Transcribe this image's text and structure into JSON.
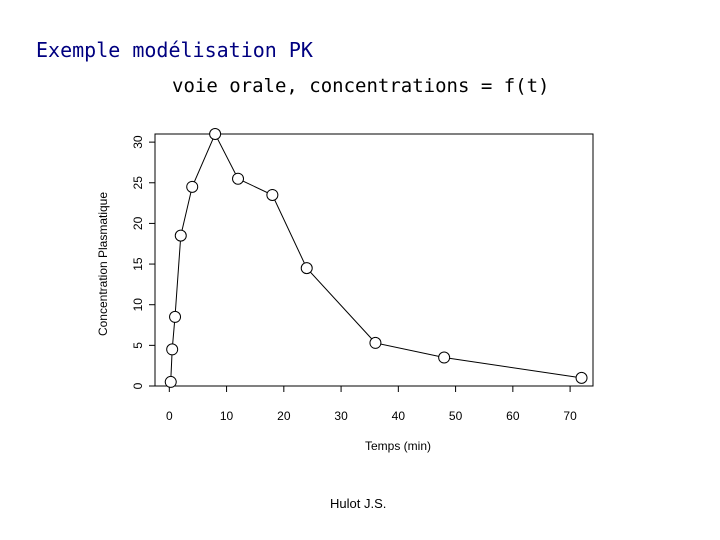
{
  "header": {
    "title": "Exemple modélisation PK",
    "subtitle": "voie orale, concentrations = f(t)"
  },
  "footer": {
    "author": "Hulot J.S."
  },
  "colors": {
    "title": "#000080",
    "axis": "#000000",
    "line": "#000000"
  },
  "chart_data": {
    "type": "line",
    "title": "",
    "xlabel": "Temps (min)",
    "ylabel": "Concentration Plasmatique",
    "xlim": [
      -2.5,
      74
    ],
    "ylim": [
      0,
      31
    ],
    "xticks": [
      0,
      10,
      20,
      30,
      40,
      50,
      60,
      70
    ],
    "yticks": [
      0,
      5,
      10,
      15,
      20,
      25,
      30
    ],
    "grid": false,
    "markers": "open-circle",
    "series": [
      {
        "x": [
          0.25,
          0.5,
          1,
          2,
          4,
          8,
          12,
          18,
          24,
          36,
          48,
          72
        ],
        "y": [
          0.5,
          4.5,
          8.5,
          18.5,
          24.5,
          31,
          25.5,
          23.5,
          14.5,
          5.3,
          3.5,
          1
        ]
      }
    ]
  }
}
